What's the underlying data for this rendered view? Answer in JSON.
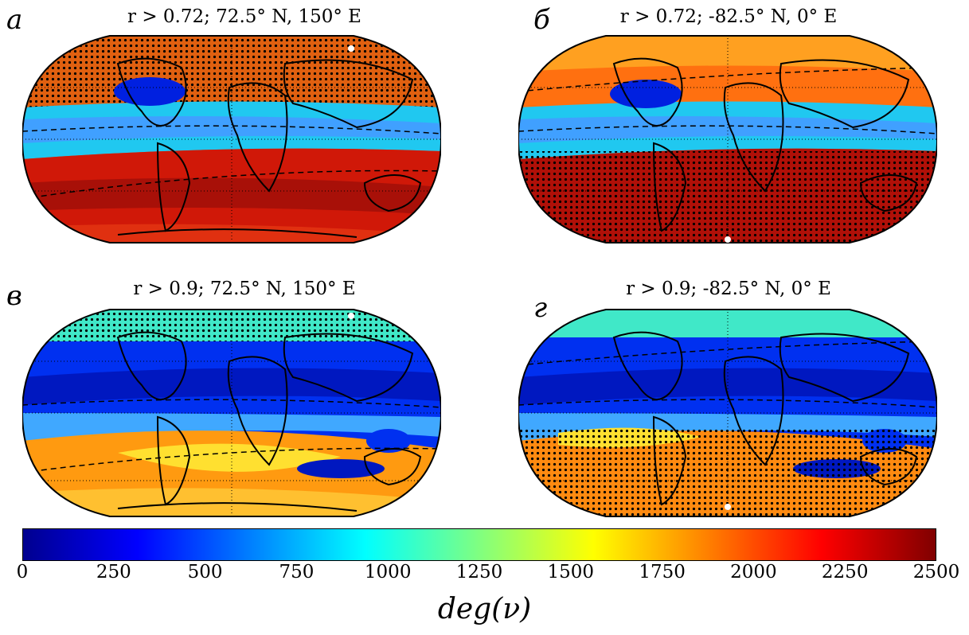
{
  "panels": [
    {
      "label": "а",
      "title": "r > 0.72; 72.5° N, 150° E",
      "marker": "north",
      "variant": "a"
    },
    {
      "label": "б",
      "title": "r > 0.72; -82.5° N, 0° E",
      "marker": "south",
      "variant": "b"
    },
    {
      "label": "в",
      "title": "r > 0.9; 72.5° N, 150° E",
      "marker": "north",
      "variant": "c"
    },
    {
      "label": "г",
      "title": "r > 0.9; -82.5° N, 0° E",
      "marker": "south",
      "variant": "d"
    }
  ],
  "colorbar": {
    "ticks": [
      "0",
      "250",
      "500",
      "750",
      "1000",
      "1250",
      "1500",
      "1750",
      "2000",
      "2250",
      "2500"
    ],
    "range": [
      0,
      2500
    ],
    "label": "deg(ν)",
    "colormap": "jet"
  },
  "colors": {
    "dark_red": "#a00000",
    "red": "#e82010",
    "orange": "#ff9a10",
    "yellow": "#ffe030",
    "cyan": "#20d8f0",
    "light_blue": "#40a8ff",
    "blue": "#0030f0",
    "dark_blue": "#0010b0",
    "teal": "#40e8c8"
  }
}
